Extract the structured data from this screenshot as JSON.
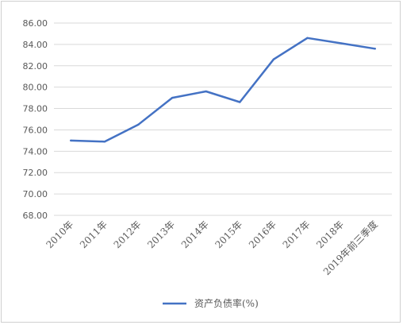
{
  "chart_data": {
    "type": "line",
    "title": "",
    "xlabel": "",
    "ylabel": "",
    "categories": [
      "2010年",
      "2011年",
      "2012年",
      "2013年",
      "2014年",
      "2015年",
      "2016年",
      "2017年",
      "2018年",
      "2019年前三季度"
    ],
    "series": [
      {
        "name": "资产负债率(%)",
        "values": [
          75.0,
          74.9,
          76.5,
          79.0,
          79.6,
          78.6,
          82.6,
          84.6,
          84.1,
          83.6
        ],
        "color": "#4472c4"
      }
    ],
    "ylim": [
      68.0,
      86.0
    ],
    "yticks": [
      "68.00",
      "70.00",
      "72.00",
      "74.00",
      "76.00",
      "78.00",
      "80.00",
      "82.00",
      "84.00",
      "86.00"
    ],
    "grid": true,
    "legend_position": "bottom"
  }
}
